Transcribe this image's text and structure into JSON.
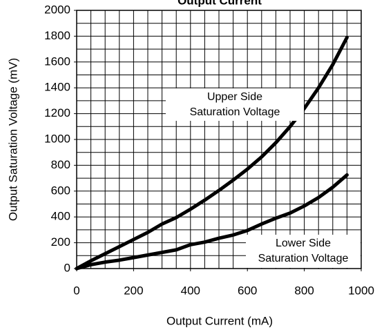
{
  "chart_data": {
    "type": "line",
    "title": "Output Current",
    "xlabel": "Output Current (mA)",
    "ylabel": "Output Saturation Voltage (mV)",
    "x": [
      0,
      50,
      100,
      150,
      200,
      250,
      300,
      350,
      400,
      450,
      500,
      550,
      600,
      650,
      700,
      750,
      800,
      850,
      900,
      950
    ],
    "series": [
      {
        "name": "Upper Side Saturation Voltage",
        "color": "#000000",
        "values": [
          0,
          60,
          115,
          170,
          225,
          280,
          345,
          395,
          460,
          530,
          605,
          685,
          770,
          865,
          975,
          1100,
          1240,
          1400,
          1580,
          1790
        ]
      },
      {
        "name": "Lower Side Saturation Voltage",
        "color": "#000000",
        "values": [
          0,
          30,
          50,
          65,
          85,
          105,
          125,
          145,
          185,
          205,
          235,
          260,
          295,
          345,
          390,
          430,
          485,
          550,
          630,
          725
        ]
      }
    ],
    "annotations": [
      [
        "Upper Side",
        "Saturation Voltage"
      ],
      [
        "Lower Side",
        "Saturation Voltage"
      ]
    ],
    "xlim": [
      0,
      1000
    ],
    "xticks": [
      0,
      200,
      400,
      600,
      800,
      1000
    ],
    "ylim": [
      0,
      2000
    ],
    "yticks": [
      0,
      200,
      400,
      600,
      800,
      1000,
      1200,
      1400,
      1600,
      1800,
      2000
    ],
    "x_grid_step": 50,
    "y_grid_step": 100,
    "grid": true
  }
}
